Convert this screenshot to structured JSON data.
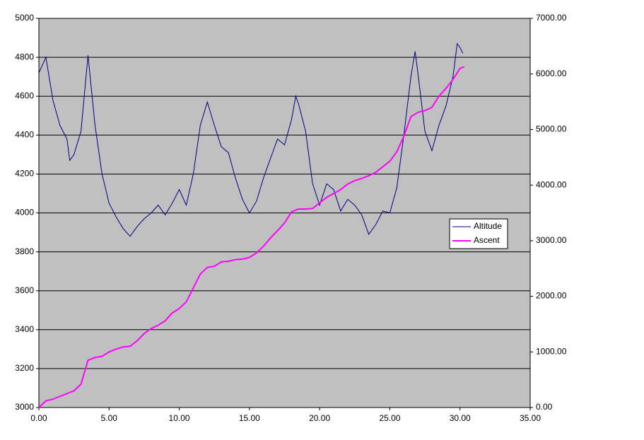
{
  "chart_data": {
    "type": "line",
    "series": [
      {
        "name": "Altitude",
        "color": "#000080",
        "axis": "y",
        "x": [
          0,
          0.5,
          1.0,
          1.5,
          2.0,
          2.2,
          2.5,
          3.0,
          3.5,
          4.0,
          4.5,
          5.0,
          5.5,
          6.0,
          6.5,
          7.0,
          7.5,
          8.0,
          8.5,
          9.0,
          9.5,
          10.0,
          10.5,
          11.0,
          11.5,
          12.0,
          12.5,
          13.0,
          13.5,
          14.0,
          14.5,
          15.0,
          15.5,
          16.0,
          16.5,
          17.0,
          17.5,
          18.0,
          18.3,
          18.5,
          19.0,
          19.5,
          20.0,
          20.5,
          21.0,
          21.5,
          22.0,
          22.5,
          23.0,
          23.5,
          24.0,
          24.5,
          25.0,
          25.5,
          26.0,
          26.5,
          26.8,
          27.0,
          27.5,
          28.0,
          28.5,
          29.0,
          29.5,
          29.8,
          30.0,
          30.2
        ],
        "values": [
          4720,
          4800,
          4580,
          4450,
          4380,
          4270,
          4300,
          4420,
          4810,
          4450,
          4200,
          4050,
          3980,
          3920,
          3880,
          3930,
          3970,
          4000,
          4040,
          3990,
          4050,
          4120,
          4040,
          4200,
          4450,
          4570,
          4450,
          4340,
          4310,
          4180,
          4070,
          4000,
          4060,
          4180,
          4280,
          4380,
          4350,
          4480,
          4600,
          4560,
          4420,
          4150,
          4040,
          4150,
          4120,
          4010,
          4070,
          4040,
          3990,
          3890,
          3940,
          4010,
          4000,
          4130,
          4400,
          4700,
          4830,
          4720,
          4420,
          4320,
          4450,
          4550,
          4700,
          4870,
          4850,
          4820
        ]
      },
      {
        "name": "Ascent",
        "color": "#ff00ff",
        "axis": "y2",
        "x": [
          0,
          0.5,
          1.0,
          1.5,
          2.0,
          2.5,
          3.0,
          3.5,
          4.0,
          4.5,
          5.0,
          5.5,
          6.0,
          6.5,
          7.0,
          7.5,
          8.0,
          8.5,
          9.0,
          9.5,
          10.0,
          10.5,
          11.0,
          11.5,
          12.0,
          12.5,
          13.0,
          13.5,
          14.0,
          14.5,
          15.0,
          15.5,
          16.0,
          16.5,
          17.0,
          17.5,
          18.0,
          18.5,
          19.0,
          19.5,
          20.0,
          20.5,
          21.0,
          21.5,
          22.0,
          22.5,
          23.0,
          23.5,
          24.0,
          24.5,
          25.0,
          25.5,
          26.0,
          26.5,
          27.0,
          27.5,
          28.0,
          28.5,
          29.0,
          29.5,
          30.0,
          30.3
        ],
        "values": [
          0,
          120,
          150,
          200,
          250,
          300,
          420,
          850,
          900,
          920,
          1000,
          1050,
          1090,
          1100,
          1200,
          1330,
          1420,
          1480,
          1560,
          1700,
          1780,
          1900,
          2150,
          2400,
          2520,
          2540,
          2620,
          2630,
          2660,
          2670,
          2700,
          2780,
          2900,
          3050,
          3180,
          3320,
          3520,
          3570,
          3570,
          3580,
          3680,
          3780,
          3850,
          3920,
          4020,
          4080,
          4120,
          4170,
          4230,
          4330,
          4430,
          4600,
          4880,
          5230,
          5310,
          5340,
          5400,
          5600,
          5740,
          5900,
          6100,
          6130
        ]
      }
    ],
    "xlim": [
      0,
      35
    ],
    "xticks": [
      {
        "value": 0,
        "label": "0.00"
      },
      {
        "value": 5,
        "label": "5.00"
      },
      {
        "value": 10,
        "label": "10.00"
      },
      {
        "value": 15,
        "label": "15.00"
      },
      {
        "value": 20,
        "label": "20.00"
      },
      {
        "value": 25,
        "label": "25.00"
      },
      {
        "value": 30,
        "label": "30.00"
      },
      {
        "value": 35,
        "label": "35.00"
      }
    ],
    "ylim": [
      3000,
      5000
    ],
    "yticks": [
      3000,
      3200,
      3400,
      3600,
      3800,
      4000,
      4200,
      4400,
      4600,
      4800,
      5000
    ],
    "y2lim": [
      0,
      7000
    ],
    "y2ticks": [
      {
        "value": 0,
        "label": "0.00"
      },
      {
        "value": 1000,
        "label": "1000.00"
      },
      {
        "value": 2000,
        "label": "2000.00"
      },
      {
        "value": 3000,
        "label": "3000.00"
      },
      {
        "value": 4000,
        "label": "4000.00"
      },
      {
        "value": 5000,
        "label": "5000.00"
      },
      {
        "value": 6000,
        "label": "6000.00"
      },
      {
        "value": 7000,
        "label": "7000.00"
      }
    ],
    "grid": true,
    "legend": "right"
  }
}
